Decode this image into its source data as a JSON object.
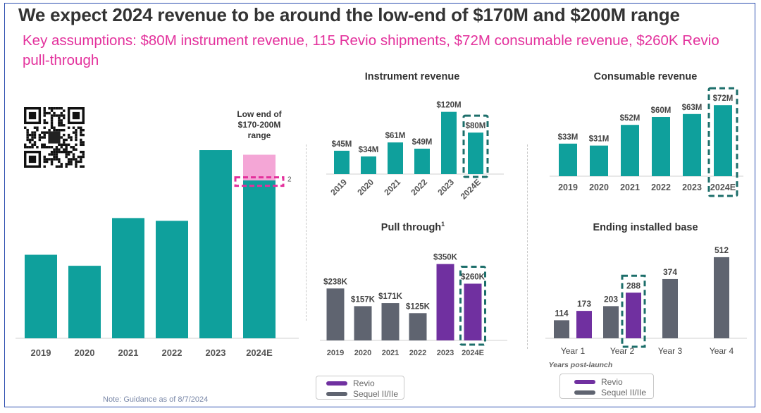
{
  "header": {
    "title": "We expect 2024 revenue to be around the low-end of $170M and $200M range",
    "subtitle": "Key assumptions: $80M instrument revenue, 115 Revio shipments, $72M consumable revenue, $260K Revio pull-through"
  },
  "note": "Note: Guidance as of 8/7/2024",
  "colors": {
    "teal": "#0fa09c",
    "purple": "#7030a0",
    "gray": "#5f6470",
    "pink": "#e3319c",
    "pink_fill": "#f4a6d6",
    "dash": "#1c6e6a"
  },
  "chart_data": [
    {
      "id": "total",
      "type": "bar",
      "title": "",
      "categories": [
        "2019",
        "2020",
        "2021",
        "2022",
        "2023",
        "2024E"
      ],
      "values": [
        91,
        79,
        131,
        128,
        205,
        172
      ],
      "range": [
        170,
        200
      ],
      "range_label": [
        "Low end of",
        "$170-200M",
        "range"
      ],
      "marker_label": "2",
      "ylim": [
        0,
        215
      ],
      "color": "#0fa09c"
    },
    {
      "id": "instrument",
      "type": "bar",
      "title": "Instrument revenue",
      "categories": [
        "2019",
        "2020",
        "2021",
        "2022",
        "2023",
        "2024E"
      ],
      "values": [
        45,
        34,
        61,
        49,
        120,
        80
      ],
      "labels": [
        "$45M",
        "$34M",
        "$61M",
        "$49M",
        "$120M",
        "$80M"
      ],
      "ylim": [
        0,
        125
      ],
      "highlight": "2024E",
      "color": "#0fa09c"
    },
    {
      "id": "consumable",
      "type": "bar",
      "title": "Consumable revenue",
      "categories": [
        "2019",
        "2020",
        "2021",
        "2022",
        "2023",
        "2024E"
      ],
      "values": [
        33,
        31,
        52,
        60,
        63,
        72
      ],
      "labels": [
        "$33M",
        "$31M",
        "$52M",
        "$60M",
        "$63M",
        "$72M"
      ],
      "ylim": [
        0,
        75
      ],
      "highlight": "2024E",
      "color": "#0fa09c"
    },
    {
      "id": "pullthrough",
      "type": "bar",
      "title": "Pull through",
      "title_sup": "1",
      "categories": [
        "2019",
        "2020",
        "2021",
        "2022",
        "2023",
        "2024E"
      ],
      "values": [
        238,
        157,
        171,
        125,
        350,
        260
      ],
      "labels": [
        "$238K",
        "$157K",
        "$171K",
        "$125K",
        "$350K",
        "$260K"
      ],
      "series_of_bar": [
        "Sequel II/IIe",
        "Sequel II/IIe",
        "Sequel II/IIe",
        "Sequel II/IIe",
        "Revio",
        "Revio"
      ],
      "ylim": [
        0,
        365
      ],
      "highlight": "2024E"
    },
    {
      "id": "installed",
      "type": "bar",
      "title": "Ending installed base",
      "categories": [
        "Year 1",
        "Year 2",
        "Year 3",
        "Year 4"
      ],
      "xlabel": "Years post-launch",
      "series": [
        {
          "name": "Sequel II/IIe",
          "values": [
            114,
            203,
            374,
            512
          ]
        },
        {
          "name": "Revio",
          "values": [
            173,
            288,
            null,
            null
          ]
        }
      ],
      "ylim": [
        0,
        525
      ],
      "highlight": "Year 2"
    }
  ],
  "legend": [
    {
      "name": "Revio",
      "color": "#7030a0"
    },
    {
      "name": "Sequel II/IIe",
      "color": "#5f6470"
    }
  ]
}
